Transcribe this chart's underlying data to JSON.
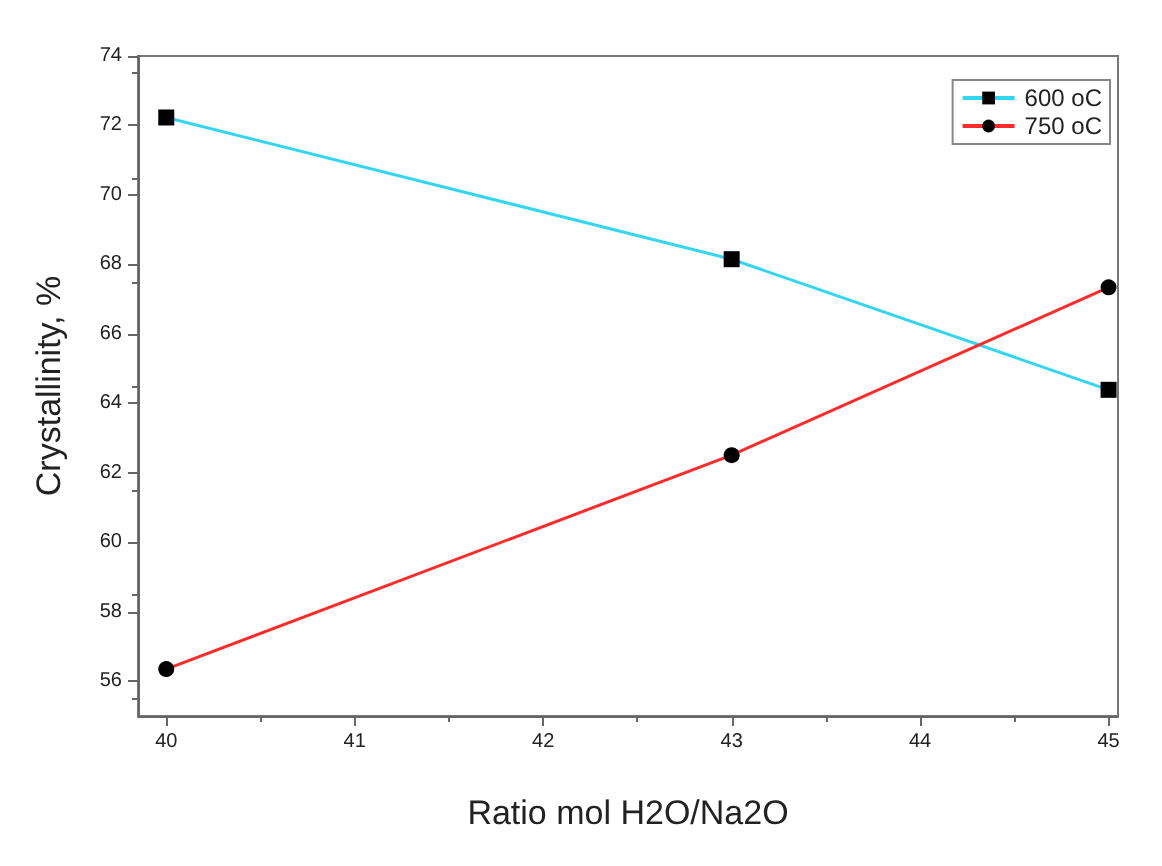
{
  "chart_data": {
    "type": "line",
    "xlabel": "Ratio mol H2O/Na2O",
    "ylabel": "Crystallinity, %",
    "x": [
      40,
      43,
      45
    ],
    "series": [
      {
        "name": "600 oC",
        "color": "#33d6f0",
        "marker": "square",
        "values": [
          72.23,
          68.15,
          64.39
        ]
      },
      {
        "name": "750 oC",
        "color": "#ff2a2a",
        "marker": "circle",
        "values": [
          56.35,
          62.51,
          67.34
        ]
      }
    ],
    "xlim": [
      39.85,
      45.05
    ],
    "xticks": [
      40,
      41,
      42,
      43,
      44,
      45
    ],
    "ylim": [
      55,
      74
    ],
    "yticks": [
      56,
      58,
      60,
      62,
      64,
      66,
      68,
      70,
      72,
      74
    ],
    "grid": false,
    "legend": "top right"
  }
}
